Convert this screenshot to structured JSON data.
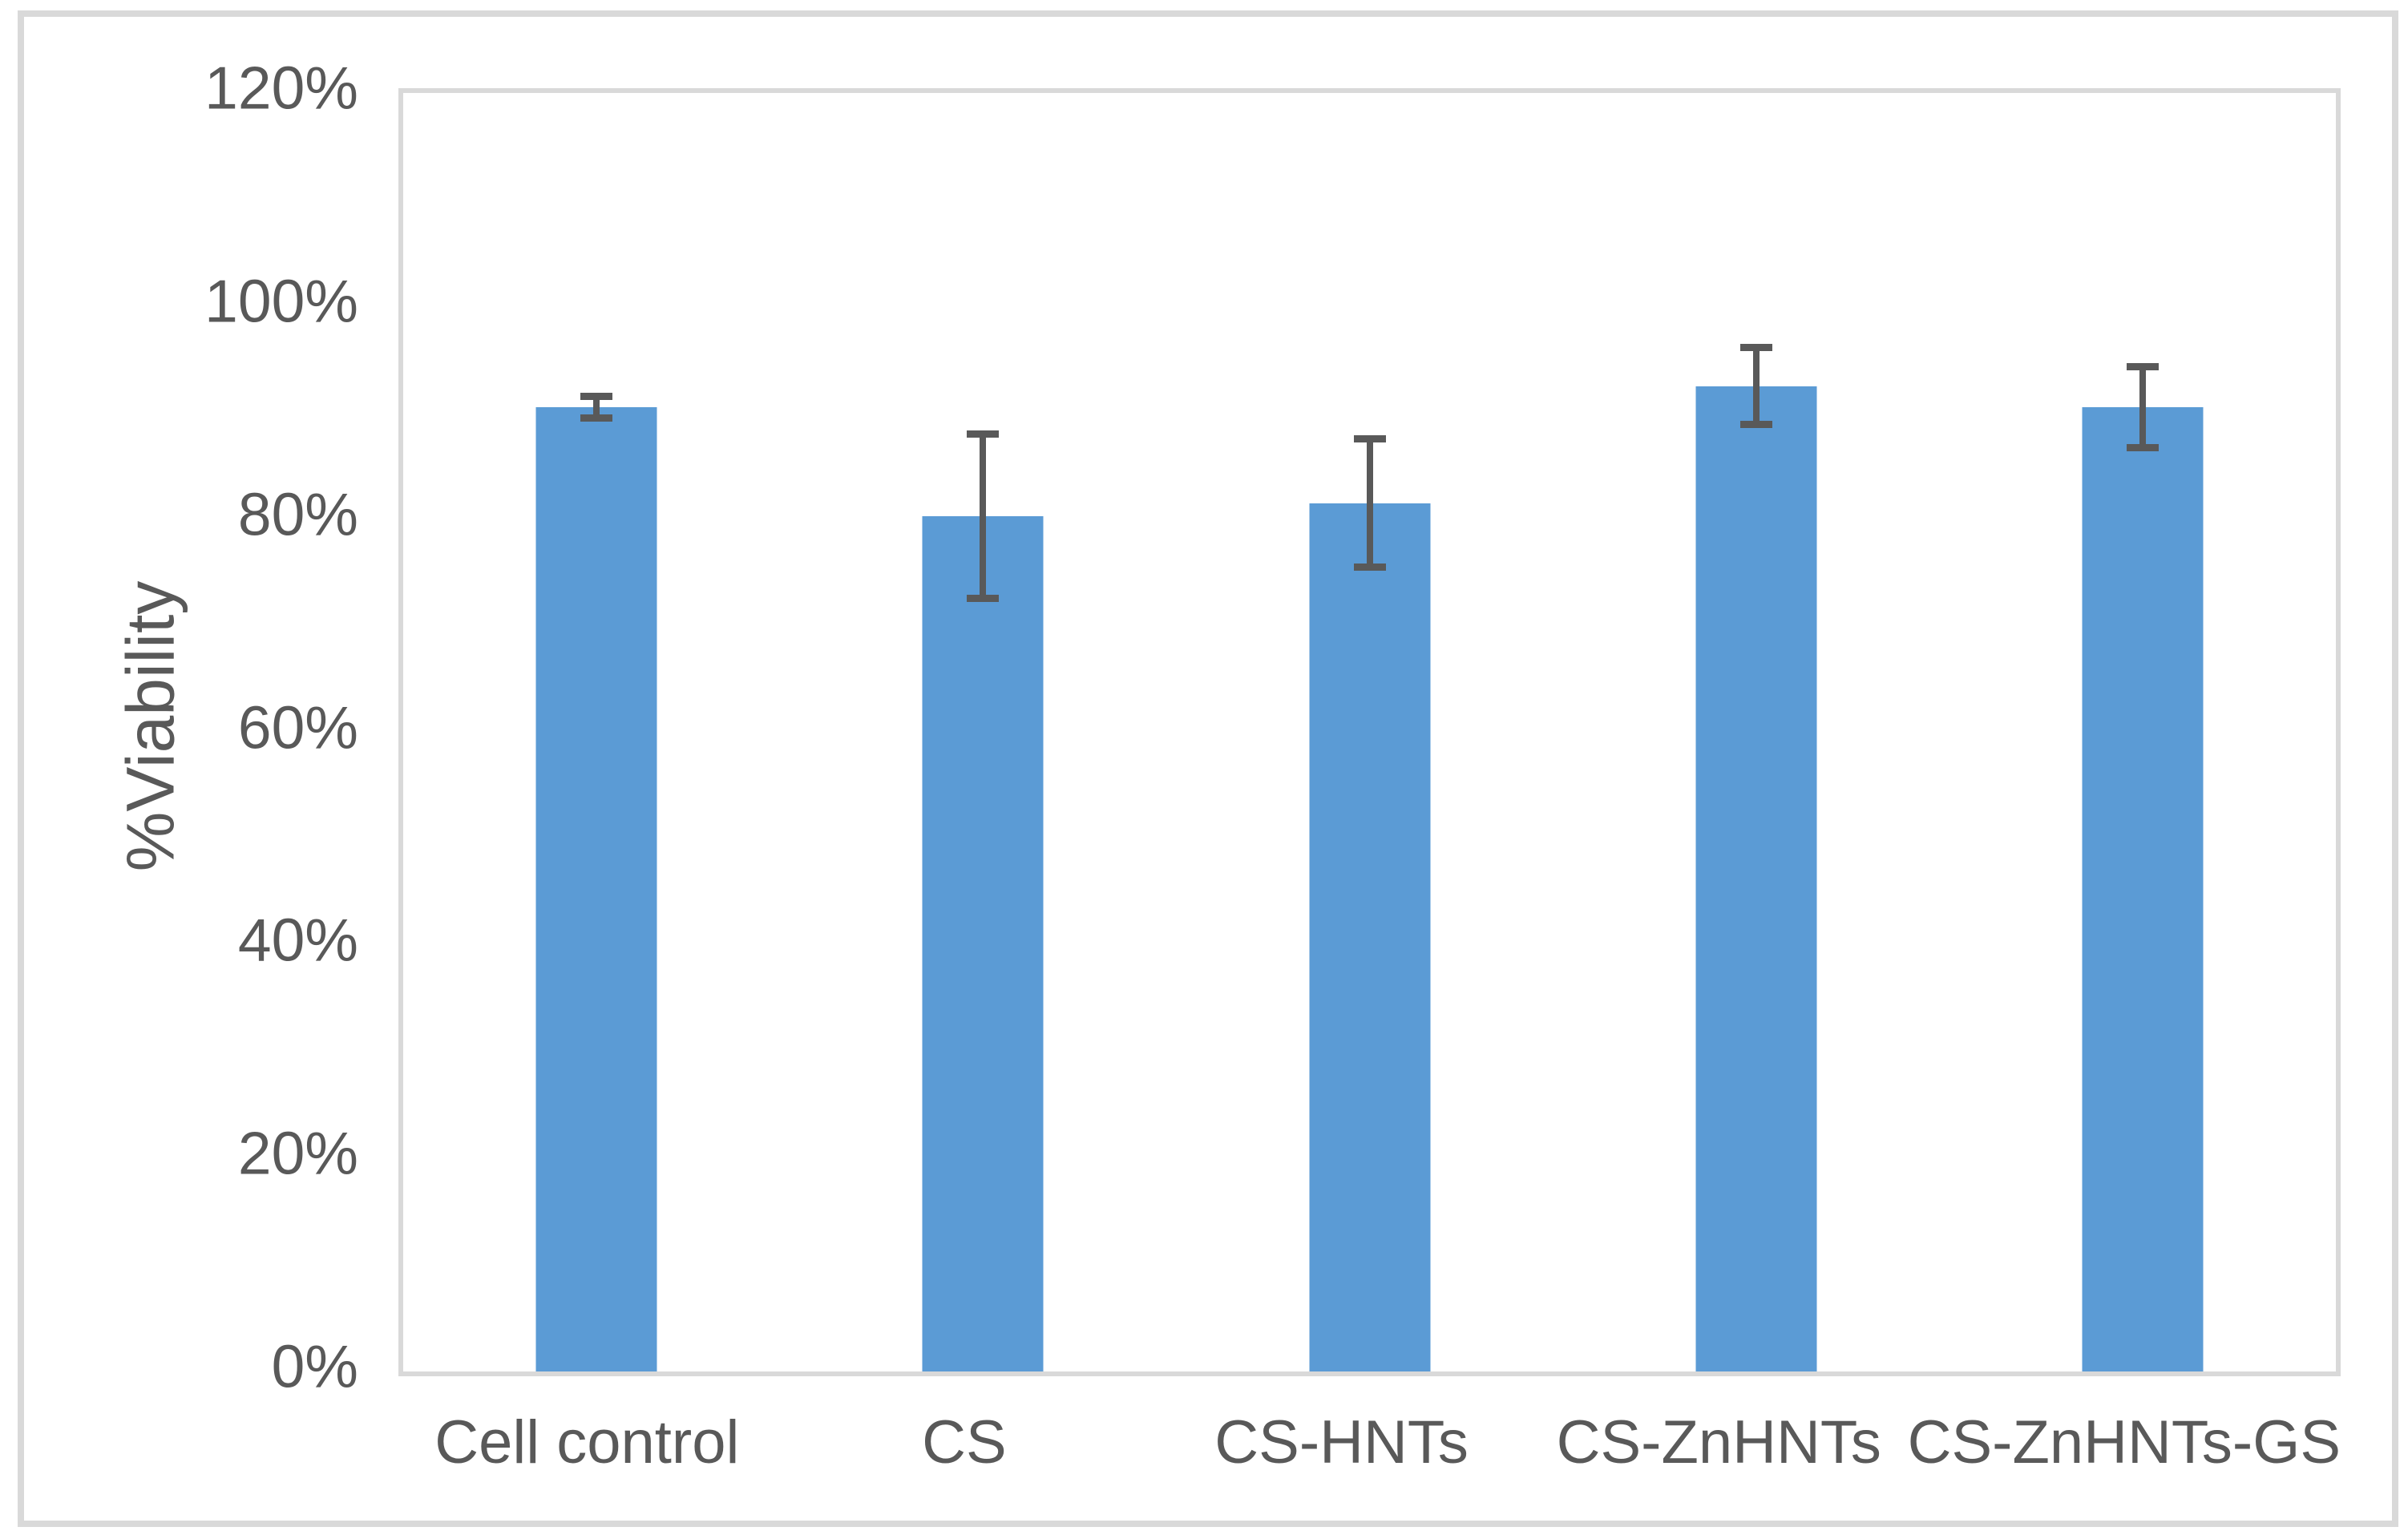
{
  "figure": {
    "background_color": "#ffffff",
    "outer_border_color": "#d9d9d9",
    "plot_border_color": "#d9d9d9",
    "text_color": "#595959"
  },
  "chart_data": {
    "type": "bar",
    "title": "",
    "xlabel": "",
    "ylabel": "%Viability",
    "categories": [
      "Cell control",
      "CS",
      "CS-HNTs",
      "CS-ZnHNTs",
      "CS-ZnHNTs-GS"
    ],
    "values": [
      90.5,
      80.3,
      81.5,
      92.5,
      90.5
    ],
    "error_bars": [
      1.0,
      7.7,
      6.0,
      3.6,
      3.8
    ],
    "ylim": [
      0,
      120
    ],
    "ytick_step": 20,
    "ytick_labels": [
      "0%",
      "20%",
      "40%",
      "60%",
      "80%",
      "100%",
      "120%"
    ],
    "bar_color": "#5b9bd5",
    "error_bar_color": "#595959",
    "grid": false,
    "legend": false,
    "bar_gap_style": "single-series, Excel-style, bar width ~31% of slot"
  }
}
